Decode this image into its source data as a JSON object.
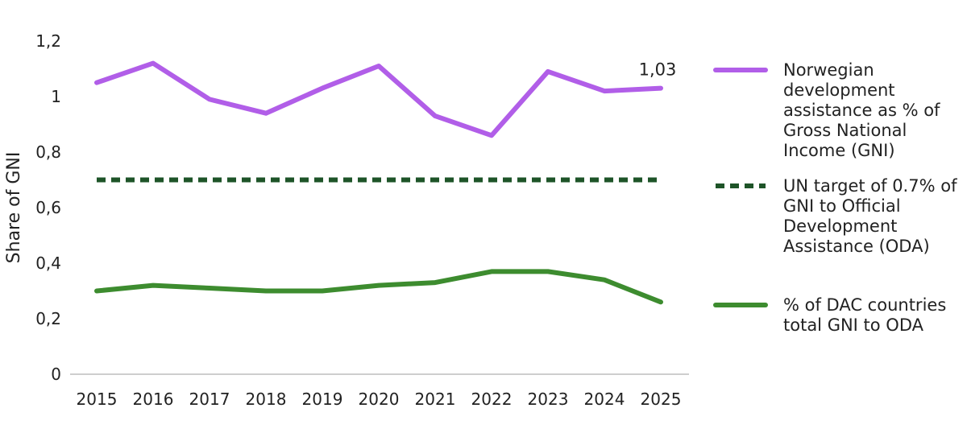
{
  "chart_data": {
    "type": "line",
    "x": [
      "2015",
      "2016",
      "2017",
      "2018",
      "2019",
      "2020",
      "2021",
      "2022",
      "2023",
      "2024",
      "2025"
    ],
    "ylabel": "Share of GNI",
    "ylim": [
      0,
      1.2
    ],
    "yticks": [
      "0",
      "0,2",
      "0,4",
      "0,6",
      "0,8",
      "1",
      "1,2"
    ],
    "grid": false,
    "legend_position": "right",
    "series": [
      {
        "name": "Norwegian development assistance as % of Gross National Income (GNI)",
        "legend_lines": [
          "Norwegian",
          "development",
          "assistance as % of",
          "Gross National",
          "Income (GNI)"
        ],
        "values": [
          1.05,
          1.12,
          0.99,
          0.94,
          1.03,
          1.11,
          0.93,
          0.86,
          1.09,
          1.02,
          1.03
        ],
        "color": "#b15ee8",
        "style": "solid",
        "last_label": "1,03"
      },
      {
        "name": "UN target of 0.7% of GNI to Official Development Assistance (ODA)",
        "legend_lines": [
          "UN target of 0.7% of",
          "GNI to Official",
          "Development",
          "Assistance (ODA)"
        ],
        "values": [
          0.7,
          0.7,
          0.7,
          0.7,
          0.7,
          0.7,
          0.7,
          0.7,
          0.7,
          0.7,
          0.7
        ],
        "color": "#1e5428",
        "style": "dashed"
      },
      {
        "name": "% of DAC countries total GNI to ODA",
        "legend_lines": [
          "% of DAC countries",
          "total GNI to ODA"
        ],
        "values": [
          0.3,
          0.32,
          0.31,
          0.3,
          0.3,
          0.32,
          0.33,
          0.37,
          0.37,
          0.34,
          0.26
        ],
        "color": "#3d8c2f",
        "style": "solid"
      }
    ]
  }
}
